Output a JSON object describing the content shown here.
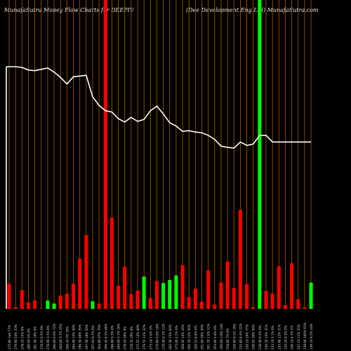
{
  "header": {
    "left": "MunafaSutra  Money Flow  Charts for DEEPIV",
    "right": "(Dee    Development Eng Ltd) MunafaSutra.com"
  },
  "chart_data": {
    "type": "bar",
    "title": "MunafaSutra  Money Flow  Charts for DEEPIV",
    "subtitle": "(Dee    Development Eng Ltd) MunafaSutra.com",
    "grid": true,
    "grid_color": "#b35a00",
    "colors": {
      "up": "#00ff00",
      "down": "#ff0000",
      "line": "#ffffff",
      "background": "#000000"
    },
    "categories": [
      "275.80 1wh 77%",
      "279.60 54% 33%",
      "278.25 15% 0%",
      "280.90 5% 0%",
      "281.40 14% 6%",
      "278.65 0.5% 0%",
      "278.00 3.5% 0%",
      "280.00 0.6% 72%",
      "284.00 3.7% 35%",
      "286.45 5% 10%",
      "284.00 15% 58%",
      "290.50 48% 35%",
      "297.90 18% 50%",
      "297.00 0.7% 0%",
      "304.80 97% 70%",
      "296.45 8.5% 80%",
      "288.80 9.3% 0%",
      "284.00 5.7% 10%",
      "278.45 56% 0%",
      "278.35 29% 0%",
      "275.55 13% 40%",
      "276.55 11% 32%",
      "273.10 7.6% 5%",
      "270.80 9.6% 10%",
      "279.00 0.7% 12%",
      "282.30 23% 84%",
      "275.00 4.5% 0%",
      "268.95 14% 10%",
      "266.30 11% 56%",
      "260.55 8.8% 0%",
      "261.60 20% 30%",
      "261.70 1.8% 51%",
      "263.60 4.8% 0%",
      "260.80 3.9% 14%",
      "258.00 7% 0%",
      "259.60 9.5% 10%",
      "253.80 8.4% 22%",
      "250.10 24% 77%",
      "240.45 20% 50%",
      "238.00 0.5% 0%",
      "236.20 15% 31%",
      "233.70 5.7% 0%",
      "235.80 12% 31%",
      "234.50 8.3% 0%",
      "240.10 4.7% 5%",
      "247.10 11% 25%",
      "238.00 100% 65%",
      "239.10 9.5% 44%"
    ],
    "values": [
      66,
      4,
      49,
      17,
      22,
      1,
      22,
      14,
      35,
      40,
      66,
      132,
      194,
      20,
      14,
      1000,
      240,
      61,
      111,
      39,
      48,
      85,
      28,
      73,
      68,
      76,
      88,
      115,
      31,
      53,
      19,
      101,
      11,
      69,
      124,
      55,
      260,
      65,
      4,
      1000,
      47,
      40,
      112,
      10,
      120,
      25,
      4,
      69
    ],
    "up": [
      false,
      false,
      false,
      false,
      false,
      false,
      true,
      true,
      false,
      false,
      false,
      false,
      false,
      true,
      false,
      false,
      false,
      false,
      false,
      false,
      false,
      true,
      false,
      false,
      true,
      true,
      true,
      false,
      false,
      false,
      false,
      false,
      false,
      false,
      false,
      false,
      false,
      false,
      false,
      true,
      false,
      false,
      false,
      false,
      false,
      false,
      false,
      true
    ],
    "price": [
      349,
      349,
      348,
      344,
      343,
      345,
      347,
      341,
      333,
      323,
      334,
      335,
      336,
      304,
      291,
      283,
      281,
      271,
      266,
      273,
      267,
      270,
      283,
      290,
      278,
      265,
      260,
      252,
      253,
      251,
      250,
      246,
      240,
      230,
      228,
      227,
      236,
      231,
      233,
      246,
      246,
      236,
      236,
      236,
      236,
      236,
      236,
      236
    ],
    "price_range": [
      0,
      400
    ],
    "volume_range": [
      0,
      360
    ]
  }
}
